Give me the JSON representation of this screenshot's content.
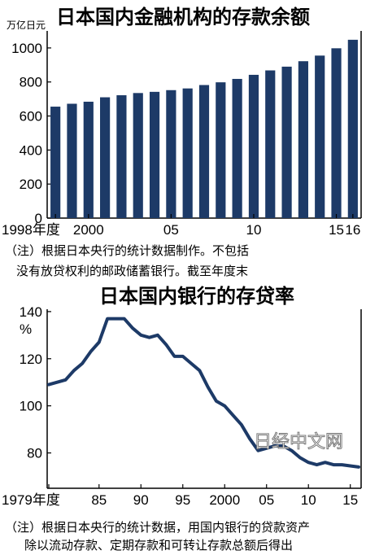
{
  "chart_data": [
    {
      "type": "bar",
      "title": "日本国内金融机构的存款余额",
      "unit_label": "万亿日元",
      "categories": [
        "1998",
        "1999",
        "2000",
        "2001",
        "2002",
        "2003",
        "2004",
        "2005",
        "2006",
        "2007",
        "2008",
        "2009",
        "2010",
        "2011",
        "2012",
        "2013",
        "2014",
        "2015",
        "2016"
      ],
      "values": [
        655,
        672,
        684,
        710,
        722,
        735,
        742,
        752,
        762,
        782,
        798,
        818,
        842,
        868,
        890,
        922,
        955,
        998,
        1048
      ],
      "ylim": [
        0,
        1100
      ],
      "yticks": [
        "0",
        "200",
        "400",
        "600",
        "800",
        "1000"
      ],
      "xticks": [
        {
          "at": "1998",
          "label": "1998年度"
        },
        {
          "at": "2000",
          "label": "2000"
        },
        {
          "at": "2005",
          "label": "05"
        },
        {
          "at": "2010",
          "label": "10"
        },
        {
          "at": "2015",
          "label": "15"
        },
        {
          "at": "2016",
          "label": "16"
        }
      ],
      "bar_color": "#1d3a67",
      "note_lines": [
        "（注）根据日本央行的统计数据制作。不包括",
        "没有放贷权利的邮政储蓄银行。截至年度末"
      ]
    },
    {
      "type": "line",
      "title": "日本国内银行的存贷率",
      "unit_label": "%",
      "x": [
        1979,
        1980,
        1981,
        1982,
        1983,
        1984,
        1985,
        1986,
        1987,
        1988,
        1989,
        1990,
        1991,
        1992,
        1993,
        1994,
        1995,
        1996,
        1997,
        1998,
        1999,
        2000,
        2001,
        2002,
        2003,
        2004,
        2005,
        2006,
        2007,
        2008,
        2009,
        2010,
        2011,
        2012,
        2013,
        2014,
        2015,
        2016
      ],
      "y": [
        109,
        110,
        111,
        115,
        118,
        123,
        127,
        137,
        137,
        137,
        133,
        130,
        129,
        130,
        126,
        121,
        121,
        118,
        115,
        108,
        102,
        100,
        96,
        92,
        86,
        81,
        82,
        83,
        83,
        81,
        78,
        76,
        75,
        76,
        75,
        75,
        74.5,
        74
      ],
      "ylim": [
        65,
        141
      ],
      "yticks": [
        "80",
        "100",
        "120",
        "140"
      ],
      "xticks": [
        {
          "at": 1979,
          "label": "1979年度"
        },
        {
          "at": 1985,
          "label": "85"
        },
        {
          "at": 1990,
          "label": "90"
        },
        {
          "at": 1995,
          "label": "95"
        },
        {
          "at": 2000,
          "label": "2000"
        },
        {
          "at": 2005,
          "label": "05"
        },
        {
          "at": 2010,
          "label": "10"
        },
        {
          "at": 2015,
          "label": "15"
        }
      ],
      "line_color": "#1d3a67",
      "note_lines": [
        "（注）根据日本央行的统计数据，用国内银行的贷款资产",
        "除以流动存款、定期存款和可转让存款总额后得出"
      ]
    }
  ],
  "watermark": "日经中文网"
}
